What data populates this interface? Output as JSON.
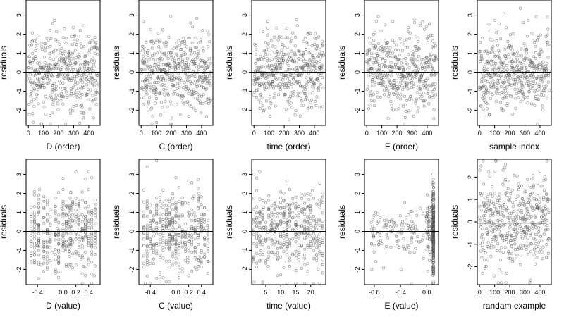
{
  "chart_data": [
    {
      "type": "scatter",
      "xlabel": "D (order)",
      "ylabel": "residuals",
      "xlim": [
        -15,
        475
      ],
      "ylim": [
        -2.8,
        3.8
      ],
      "xticks": [
        0,
        100,
        200,
        300,
        400
      ],
      "yticks": [
        -2,
        -1,
        0,
        1,
        2,
        3
      ],
      "ref_y": 0,
      "pattern": "uniform",
      "n": 460
    },
    {
      "type": "scatter",
      "xlabel": "C (order)",
      "ylabel": "residuals",
      "xlim": [
        -15,
        475
      ],
      "ylim": [
        -2.8,
        3.8
      ],
      "xticks": [
        0,
        100,
        200,
        300,
        400
      ],
      "yticks": [
        -2,
        -1,
        0,
        1,
        2,
        3
      ],
      "ref_y": 0,
      "pattern": "uniform",
      "n": 460
    },
    {
      "type": "scatter",
      "xlabel": "time (order)",
      "ylabel": "residuals",
      "xlim": [
        -15,
        475
      ],
      "ylim": [
        -2.8,
        3.8
      ],
      "xticks": [
        0,
        100,
        200,
        300,
        400
      ],
      "yticks": [
        -2,
        -1,
        0,
        1,
        2,
        3
      ],
      "ref_y": 0,
      "pattern": "uniform",
      "n": 460
    },
    {
      "type": "scatter",
      "xlabel": "E (order)",
      "ylabel": "residuals",
      "xlim": [
        -15,
        475
      ],
      "ylim": [
        -2.8,
        3.8
      ],
      "xticks": [
        0,
        100,
        200,
        300,
        400
      ],
      "yticks": [
        -2,
        -1,
        0,
        1,
        2,
        3
      ],
      "ref_y": 0,
      "pattern": "uniform",
      "n": 460
    },
    {
      "type": "scatter",
      "xlabel": "sample index",
      "ylabel": "residuals",
      "xlim": [
        -15,
        475
      ],
      "ylim": [
        -2.8,
        3.8
      ],
      "xticks": [
        0,
        100,
        200,
        300,
        400
      ],
      "yticks": [
        -2,
        -1,
        0,
        1,
        2,
        3
      ],
      "ref_y": 0,
      "pattern": "uniform",
      "n": 460
    },
    {
      "type": "scatter",
      "xlabel": "D (value)",
      "ylabel": "residuals",
      "xlim": [
        -0.58,
        0.58
      ],
      "ylim": [
        -2.8,
        3.8
      ],
      "xticks": [
        -0.4,
        0.0,
        0.2,
        0.4
      ],
      "yticks": [
        -2,
        -1,
        0,
        1,
        2,
        3
      ],
      "ref_y": 0,
      "pattern": "columns",
      "columns": [
        -0.5,
        -0.45,
        -0.38,
        -0.3,
        -0.25,
        -0.2,
        -0.12,
        -0.07,
        0.0,
        0.05,
        0.1,
        0.12,
        0.15,
        0.2,
        0.25,
        0.3,
        0.35,
        0.4,
        0.45,
        0.5
      ],
      "n": 440
    },
    {
      "type": "scatter",
      "xlabel": "C (value)",
      "ylabel": "residuals",
      "xlim": [
        -0.58,
        0.58
      ],
      "ylim": [
        -2.8,
        3.8
      ],
      "xticks": [
        -0.4,
        0.0,
        0.2,
        0.4
      ],
      "yticks": [
        -2,
        -1,
        0,
        1,
        2,
        3
      ],
      "ref_y": 0,
      "pattern": "columns",
      "columns": [
        -0.5,
        -0.45,
        -0.4,
        -0.35,
        -0.3,
        -0.25,
        -0.2,
        -0.15,
        -0.1,
        -0.05,
        0.0,
        0.05,
        0.1,
        0.15,
        0.2,
        0.25,
        0.3,
        0.35,
        0.4,
        0.45,
        0.5
      ],
      "n": 440
    },
    {
      "type": "scatter",
      "xlabel": "time (value)",
      "ylabel": "residuals",
      "xlim": [
        0.3,
        25
      ],
      "ylim": [
        -2.8,
        3.8
      ],
      "xticks": [
        5,
        10,
        15,
        20
      ],
      "yticks": [
        -2,
        -1,
        0,
        1,
        2,
        3
      ],
      "ref_y": 0,
      "pattern": "columns",
      "columns": [
        1,
        2,
        3,
        4,
        5,
        6,
        7,
        8,
        9,
        10,
        11,
        12,
        13,
        14,
        15,
        16,
        17,
        18,
        19,
        20,
        21,
        22,
        23,
        24
      ],
      "n": 440
    },
    {
      "type": "scatter",
      "xlabel": "E (value)",
      "ylabel": "residuals",
      "xlim": [
        -0.95,
        0.18
      ],
      "ylim": [
        -2.8,
        3.8
      ],
      "xticks": [
        -0.8,
        -0.4,
        0.0
      ],
      "yticks": [
        -2,
        -1,
        0,
        1,
        2,
        3
      ],
      "ref_y": 0,
      "pattern": "skewed",
      "n": 420
    },
    {
      "type": "scatter",
      "xlabel": "randam example",
      "ylabel": "residuals",
      "xlim": [
        -15,
        475
      ],
      "ylim": [
        -2.8,
        2.8
      ],
      "xticks": [
        0,
        100,
        200,
        300,
        400
      ],
      "yticks": [
        -2,
        -1,
        0,
        1,
        2
      ],
      "ref_y": -0.05,
      "pattern": "uniform",
      "n": 460
    }
  ]
}
